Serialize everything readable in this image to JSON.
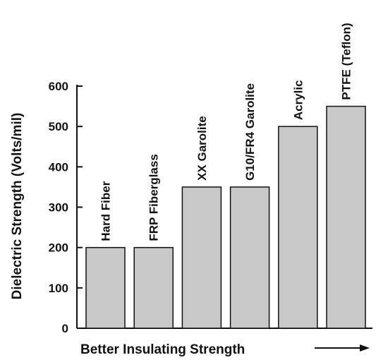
{
  "chart_data": {
    "type": "bar",
    "title": "",
    "xlabel": "Better Insulating Strength",
    "ylabel": "Dielectric Strength (Volts/mil)",
    "categories": [
      "Hard Fiber",
      "FRP Fiberglass",
      "XX Garolite",
      "G10/FR4 Garolite",
      "Acrylic",
      "PTFE (Teflon)"
    ],
    "values": [
      200,
      200,
      350,
      350,
      500,
      550
    ],
    "ylim": [
      0,
      600
    ],
    "yticks": [
      "0",
      "100",
      "200",
      "300",
      "400",
      "500",
      "600"
    ],
    "grid": false,
    "bar_color": "#c8c8c8",
    "bar_stroke": "#111111",
    "xlabel_arrow": "right-arrow-icon"
  }
}
